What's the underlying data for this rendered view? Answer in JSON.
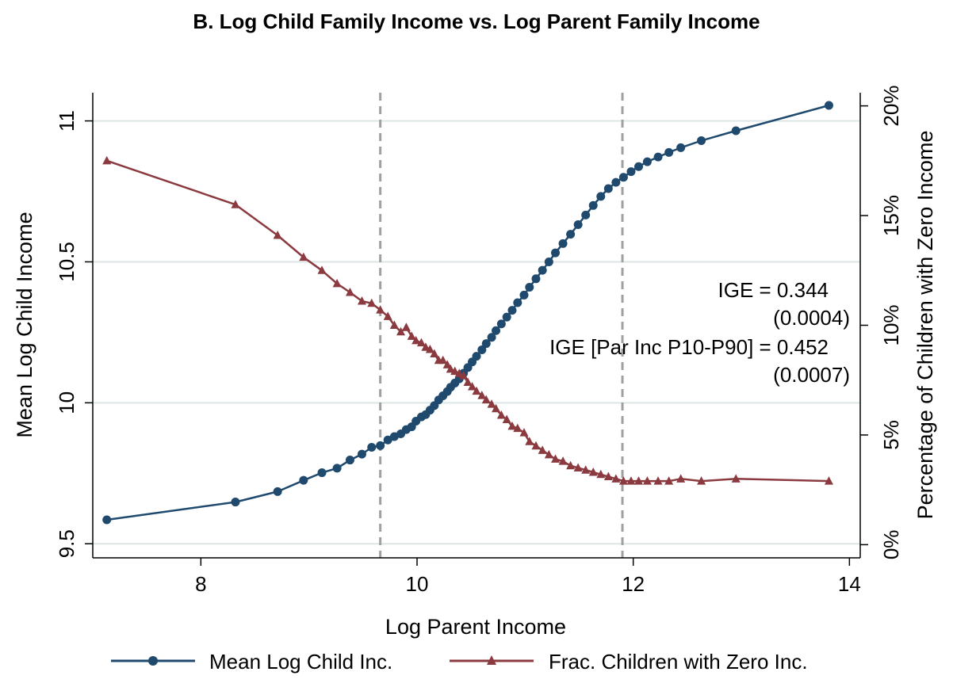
{
  "chart_data": {
    "type": "line",
    "title": "B. Log Child Family Income vs. Log Parent Family Income",
    "xlabel": "Log Parent Income",
    "ylabel_left": "Mean Log Child Income",
    "ylabel_right": "Percentage of Children with Zero Income",
    "xlim": [
      7.0,
      14.1
    ],
    "ylim_left": [
      9.45,
      11.1
    ],
    "ylim_right": [
      -0.006,
      0.206
    ],
    "x_ticks": [
      8,
      10,
      12,
      14
    ],
    "x_tick_labels": [
      "8",
      "10",
      "12",
      "14"
    ],
    "y_left_ticks": [
      9.5,
      10,
      10.5,
      11
    ],
    "y_left_tick_labels": [
      "9.5",
      "10",
      "10.5",
      "11"
    ],
    "y_right_ticks": [
      0,
      0.05,
      0.1,
      0.15,
      0.2
    ],
    "y_right_tick_labels": [
      "0%",
      "5%",
      "10%",
      "15%",
      "20%"
    ],
    "vertical_reference_lines": [
      9.66,
      11.9
    ],
    "grid": "horizontal",
    "legend_position": "bottom",
    "annotations": [
      {
        "text": "IGE = 0.344"
      },
      {
        "text": "(0.0004)"
      },
      {
        "text": "IGE [Par Inc P10-P90] = 0.452"
      },
      {
        "text": "(0.0007)"
      }
    ],
    "colors": {
      "mean_log_child": "#1f4a6e",
      "frac_zero": "#8b3a3f",
      "refline": "#a0a0a0",
      "grid": "#dde6e6"
    },
    "series": [
      {
        "name": "Mean Log Child Inc.",
        "axis": "left",
        "marker": "circle",
        "x": [
          7.13,
          8.32,
          8.71,
          8.95,
          9.12,
          9.26,
          9.38,
          9.49,
          9.58,
          9.66,
          9.73,
          9.79,
          9.85,
          9.9,
          9.95,
          9.99,
          10.04,
          10.08,
          10.12,
          10.16,
          10.2,
          10.24,
          10.28,
          10.31,
          10.35,
          10.39,
          10.43,
          10.47,
          10.51,
          10.55,
          10.6,
          10.64,
          10.69,
          10.73,
          10.78,
          10.83,
          10.88,
          10.93,
          10.99,
          11.04,
          11.1,
          11.16,
          11.22,
          11.28,
          11.35,
          11.42,
          11.49,
          11.56,
          11.63,
          11.7,
          11.77,
          11.84,
          11.91,
          11.98,
          12.05,
          12.13,
          12.23,
          12.33,
          12.44,
          12.63,
          12.95,
          13.81
        ],
        "y": [
          9.585,
          9.648,
          9.685,
          9.725,
          9.752,
          9.768,
          9.797,
          9.818,
          9.842,
          9.848,
          9.868,
          9.88,
          9.89,
          9.905,
          9.915,
          9.935,
          9.95,
          9.958,
          9.974,
          9.99,
          10.01,
          10.025,
          10.04,
          10.055,
          10.07,
          10.085,
          10.105,
          10.125,
          10.145,
          10.165,
          10.188,
          10.21,
          10.232,
          10.256,
          10.28,
          10.304,
          10.328,
          10.355,
          10.382,
          10.41,
          10.44,
          10.47,
          10.5,
          10.532,
          10.565,
          10.598,
          10.632,
          10.666,
          10.7,
          10.732,
          10.76,
          10.782,
          10.8,
          10.82,
          10.838,
          10.855,
          10.872,
          10.888,
          10.905,
          10.93,
          10.965,
          11.055
        ]
      },
      {
        "name": "Frac. Children with Zero Inc.",
        "axis": "right",
        "marker": "triangle",
        "x": [
          7.13,
          8.32,
          8.71,
          8.95,
          9.12,
          9.26,
          9.38,
          9.49,
          9.58,
          9.66,
          9.73,
          9.79,
          9.85,
          9.9,
          9.95,
          9.99,
          10.04,
          10.08,
          10.12,
          10.16,
          10.2,
          10.24,
          10.28,
          10.31,
          10.35,
          10.39,
          10.43,
          10.47,
          10.51,
          10.55,
          10.6,
          10.64,
          10.69,
          10.73,
          10.78,
          10.83,
          10.88,
          10.93,
          10.99,
          11.04,
          11.1,
          11.16,
          11.22,
          11.28,
          11.35,
          11.42,
          11.49,
          11.56,
          11.63,
          11.7,
          11.77,
          11.84,
          11.91,
          11.98,
          12.05,
          12.13,
          12.23,
          12.33,
          12.44,
          12.63,
          12.95,
          13.81
        ],
        "y": [
          0.175,
          0.155,
          0.141,
          0.131,
          0.125,
          0.119,
          0.115,
          0.111,
          0.11,
          0.107,
          0.104,
          0.1,
          0.097,
          0.099,
          0.095,
          0.093,
          0.092,
          0.09,
          0.089,
          0.087,
          0.084,
          0.084,
          0.082,
          0.08,
          0.079,
          0.078,
          0.077,
          0.074,
          0.072,
          0.07,
          0.068,
          0.066,
          0.064,
          0.062,
          0.059,
          0.057,
          0.054,
          0.053,
          0.051,
          0.047,
          0.045,
          0.043,
          0.041,
          0.039,
          0.038,
          0.036,
          0.035,
          0.034,
          0.033,
          0.032,
          0.031,
          0.03,
          0.029,
          0.029,
          0.029,
          0.029,
          0.029,
          0.029,
          0.03,
          0.029,
          0.03,
          0.029
        ]
      }
    ]
  }
}
